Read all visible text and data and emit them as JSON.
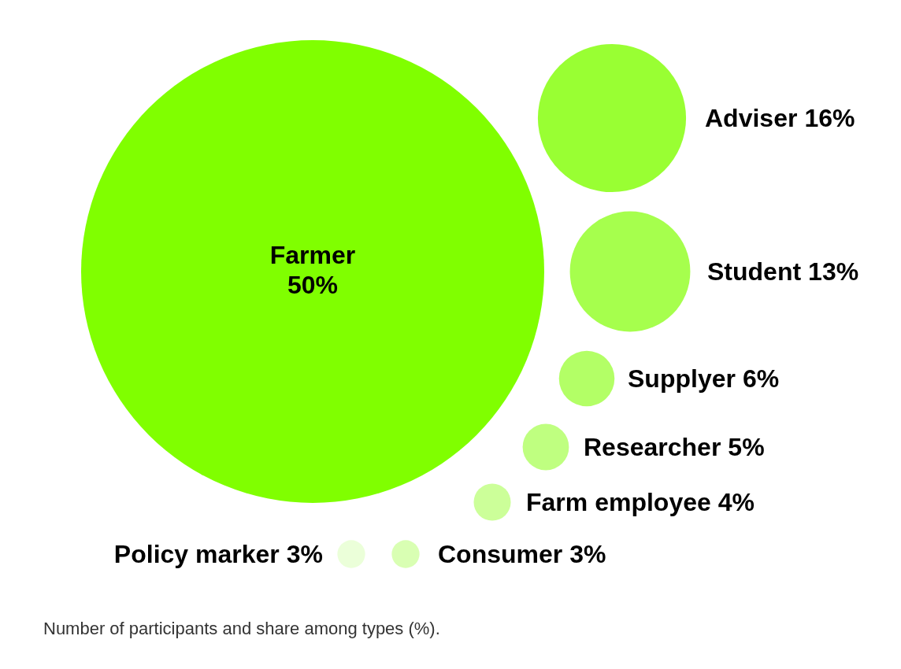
{
  "chart_data": {
    "type": "other",
    "categories": [
      "Farmer",
      "Adviser",
      "Student",
      "Supplyer",
      "Researcher",
      "Farm employee",
      "Policy marker",
      "Consumer"
    ],
    "values": [
      50,
      16,
      13,
      6,
      5,
      4,
      3,
      3
    ],
    "value_labels": [
      "50%",
      "16%",
      "13%",
      "6%",
      "5%",
      "4%",
      "3%",
      "3%"
    ],
    "colors": [
      "#80ff00",
      "#99ff33",
      "#a6ff4d",
      "#b3ff66",
      "#bfff80",
      "#ccff99",
      "#ebffd9",
      "#d9ffb3"
    ],
    "annotations": [
      "Number of participants and share among types (%)."
    ]
  }
}
